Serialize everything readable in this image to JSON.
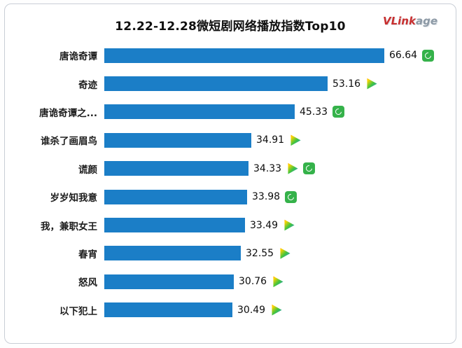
{
  "header": {
    "title": "12.22-12.28微短剧网络播放指数Top10",
    "logo_part1": "VLink",
    "logo_part2": "age"
  },
  "chart_data": {
    "type": "bar",
    "orientation": "horizontal",
    "title": "12.22-12.28微短剧网络播放指数Top10",
    "categories": [
      "唐诡奇谭",
      "奇迹",
      "唐诡奇谭之...",
      "谁杀了画眉鸟",
      "谎颜",
      "岁岁知我意",
      "我，兼职女王",
      "春宵",
      "怒风",
      "以下犯上"
    ],
    "values": [
      66.64,
      53.16,
      45.33,
      34.91,
      34.33,
      33.98,
      33.49,
      32.55,
      30.76,
      30.49
    ],
    "value_labels": [
      "66.64",
      "53.16",
      "45.33",
      "34.91",
      "34.33",
      "33.98",
      "33.49",
      "32.55",
      "30.76",
      "30.49"
    ],
    "platforms": [
      [
        "iqiyi"
      ],
      [
        "tencent-video"
      ],
      [
        "iqiyi"
      ],
      [
        "tencent-video"
      ],
      [
        "tencent-video",
        "iqiyi"
      ],
      [
        "iqiyi"
      ],
      [
        "tencent-video"
      ],
      [
        "tencent-video"
      ],
      [
        "tencent-video"
      ],
      [
        "tencent-video"
      ]
    ],
    "xlim": [
      0,
      70
    ],
    "bar_color": "#1b7ec7",
    "grid": false,
    "legend": "none"
  }
}
